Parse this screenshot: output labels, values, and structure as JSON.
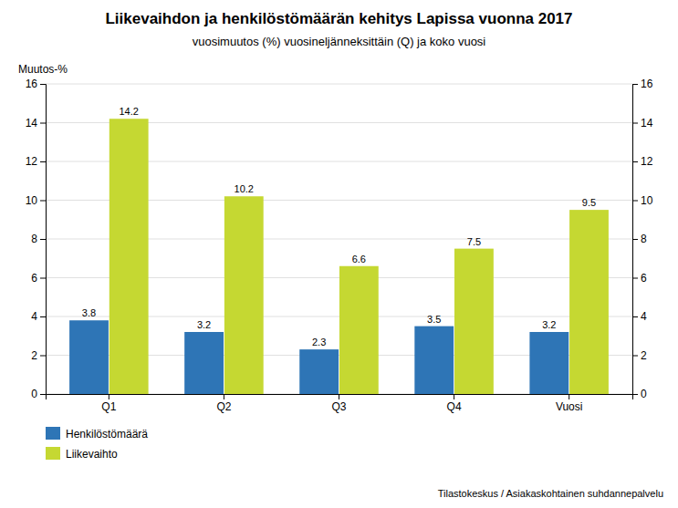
{
  "chart_data": {
    "type": "bar",
    "title": "Liikevaihdon ja henkilöstömäärän kehitys Lapissa vuonna 2017",
    "subtitle": "vuosimuutos (%) vuosineljänneksittäin (Q) ja koko vuosi",
    "ylabel": "Muutos-%",
    "annotations": [
      "Tilastokeskus / Asiakaskohtainen suhdannepalvelu"
    ],
    "categories": [
      "Q1",
      "Q2",
      "Q3",
      "Q4",
      "Vuosi"
    ],
    "series": [
      {
        "name": "Henkilöstömäärä",
        "color": "#2E75B6",
        "values": [
          3.8,
          3.2,
          2.3,
          3.5,
          3.2
        ]
      },
      {
        "name": "Liikevaihto",
        "color": "#C5D832",
        "values": [
          14.2,
          10.2,
          6.6,
          7.5,
          9.5
        ]
      }
    ],
    "ylim": [
      0,
      16
    ],
    "yticks": [
      0,
      2,
      4,
      6,
      8,
      10,
      12,
      14,
      16
    ],
    "y2lim": [
      0,
      16
    ],
    "y2ticks": [
      0,
      2,
      4,
      6,
      8,
      10,
      12,
      14,
      16
    ],
    "grid": true,
    "legend": "lower left",
    "data_labels": true
  }
}
